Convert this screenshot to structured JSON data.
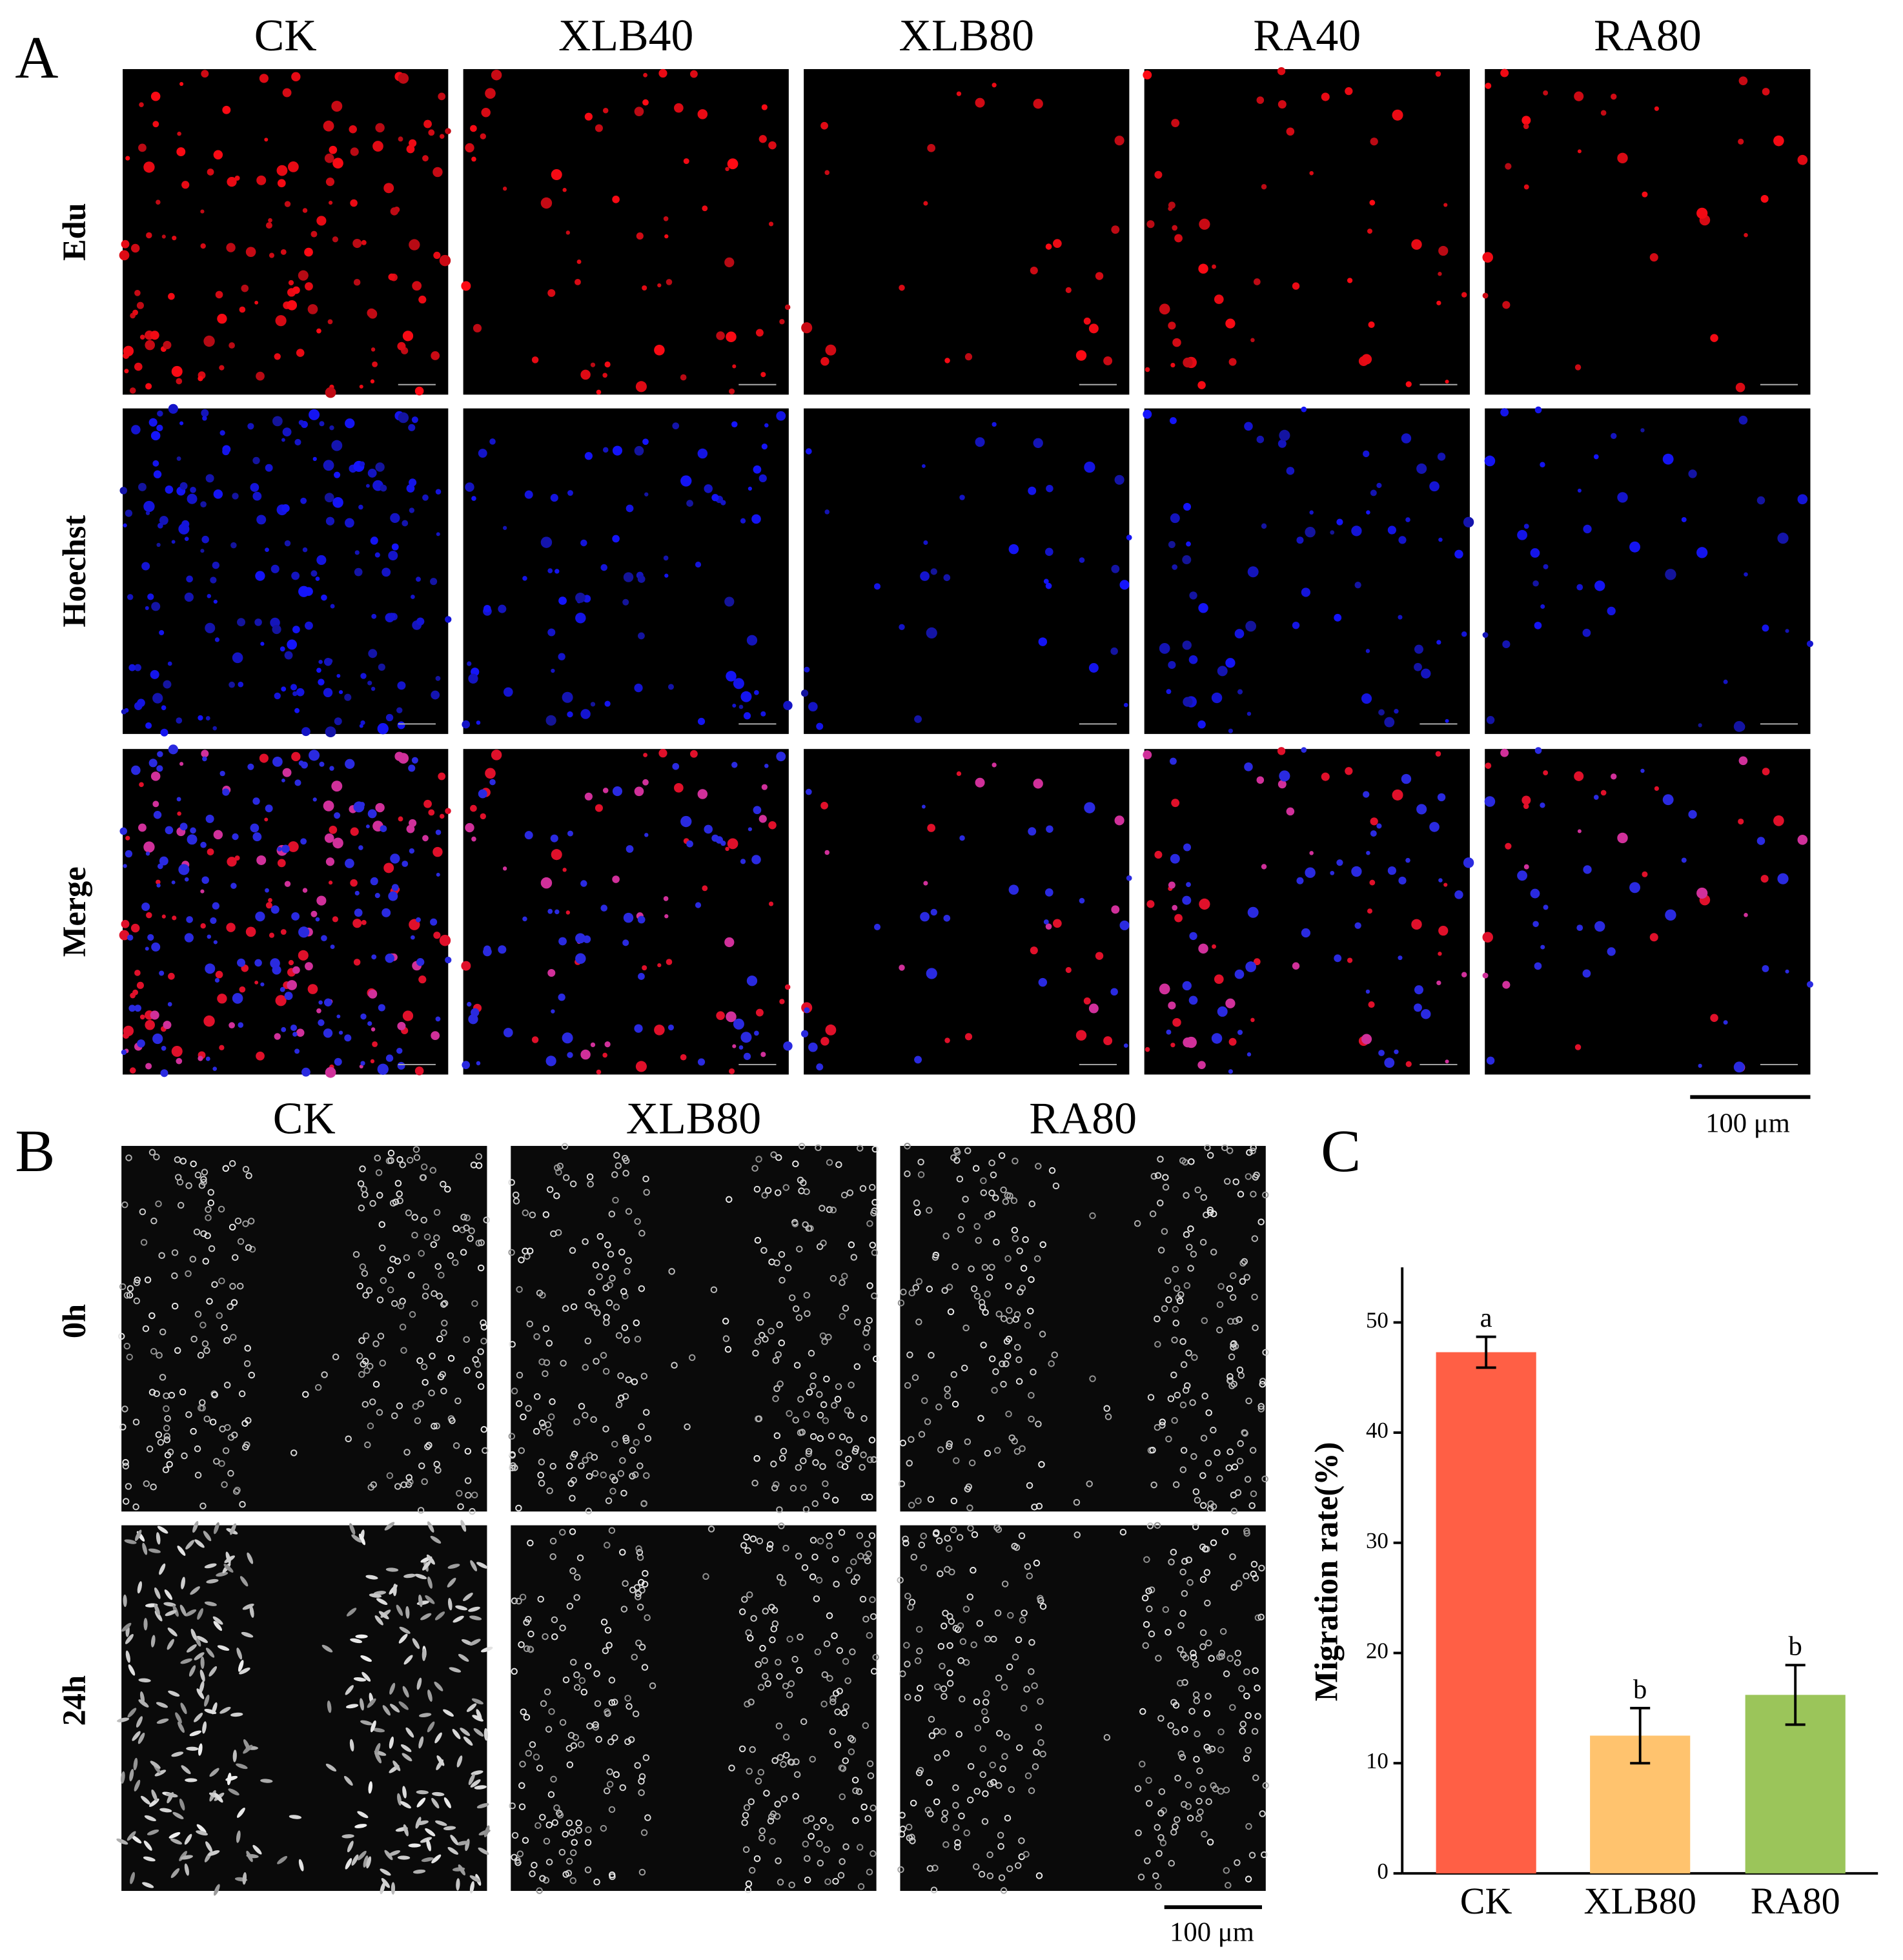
{
  "panel_a": {
    "label": "A",
    "columns": [
      "CK",
      "XLB40",
      "XLB80",
      "RA40",
      "RA80"
    ],
    "rows": [
      "Edu",
      "Hoechst",
      "Merge"
    ],
    "scale_bar": "100 μm"
  },
  "panel_b": {
    "label": "B",
    "columns": [
      "CK",
      "XLB80",
      "RA80"
    ],
    "rows": [
      "0h",
      "24h"
    ],
    "scale_bar": "100 μm"
  },
  "chart_data": {
    "type": "bar",
    "panel_label": "C",
    "ylabel": "Migration rate(%)",
    "categories": [
      "CK",
      "XLB80",
      "RA80"
    ],
    "values": [
      47.3,
      12.5,
      16.2
    ],
    "errors": [
      1.4,
      2.5,
      2.7
    ],
    "annotations": [
      "a",
      "b",
      "b"
    ],
    "colors": [
      "#ff5f45",
      "#ffc36e",
      "#9bc55a"
    ],
    "ylim": [
      0,
      55
    ],
    "yticks": [
      0,
      10,
      20,
      30,
      40,
      50
    ]
  }
}
